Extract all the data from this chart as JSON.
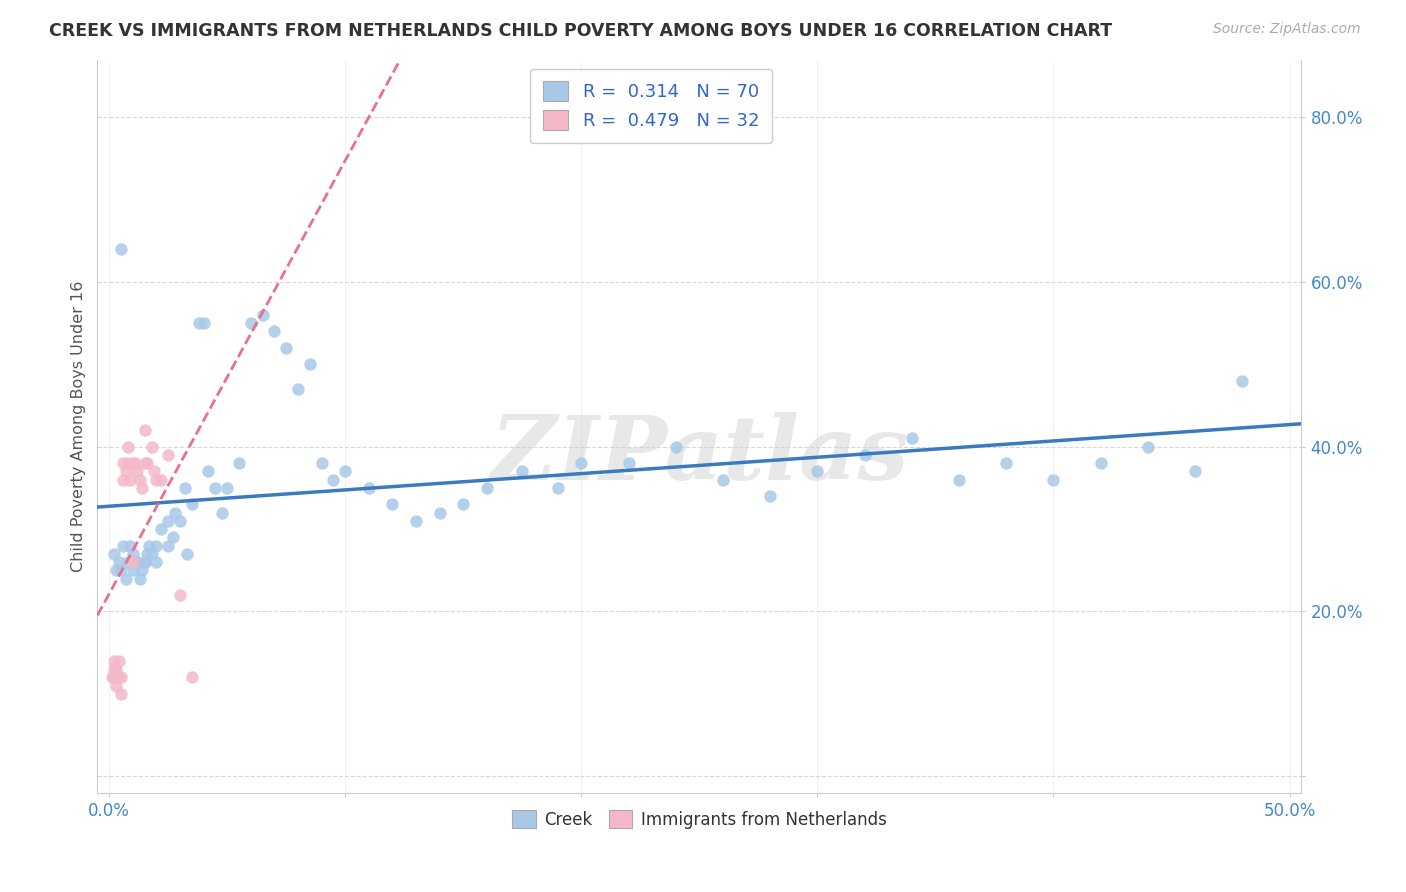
{
  "title": "CREEK VS IMMIGRANTS FROM NETHERLANDS CHILD POVERTY AMONG BOYS UNDER 16 CORRELATION CHART",
  "source": "Source: ZipAtlas.com",
  "ylabel": "Child Poverty Among Boys Under 16",
  "xlim": [
    -0.005,
    0.505
  ],
  "ylim": [
    -0.02,
    0.87
  ],
  "xticks": [
    0.0,
    0.1,
    0.2,
    0.3,
    0.4,
    0.5
  ],
  "yticks": [
    0.0,
    0.2,
    0.4,
    0.6,
    0.8
  ],
  "creek_color": "#a8c8e8",
  "netherlands_color": "#f4b8c8",
  "creek_line_color": "#3a7abf",
  "netherlands_line_color": "#e87090",
  "creek_R": 0.314,
  "creek_N": 70,
  "netherlands_R": 0.479,
  "netherlands_N": 32,
  "watermark": "ZIPatlas",
  "background_color": "#ffffff",
  "grid_color": "#d8d8d8",
  "title_color": "#333333",
  "source_color": "#aaaaaa",
  "tick_color": "#4488cc",
  "ylabel_color": "#555555",
  "creek_x": [
    0.002,
    0.003,
    0.004,
    0.005,
    0.006,
    0.007,
    0.008,
    0.009,
    0.01,
    0.011,
    0.012,
    0.013,
    0.014,
    0.015,
    0.016,
    0.017,
    0.018,
    0.02,
    0.022,
    0.025,
    0.027,
    0.028,
    0.03,
    0.032,
    0.033,
    0.035,
    0.038,
    0.04,
    0.042,
    0.045,
    0.048,
    0.05,
    0.055,
    0.06,
    0.065,
    0.07,
    0.075,
    0.08,
    0.085,
    0.09,
    0.095,
    0.1,
    0.11,
    0.12,
    0.13,
    0.14,
    0.15,
    0.16,
    0.175,
    0.19,
    0.2,
    0.22,
    0.24,
    0.26,
    0.28,
    0.3,
    0.32,
    0.34,
    0.36,
    0.38,
    0.4,
    0.42,
    0.44,
    0.46,
    0.48,
    0.005,
    0.01,
    0.015,
    0.02,
    0.025
  ],
  "creek_y": [
    0.27,
    0.25,
    0.26,
    0.25,
    0.28,
    0.24,
    0.26,
    0.28,
    0.27,
    0.26,
    0.26,
    0.24,
    0.25,
    0.26,
    0.27,
    0.28,
    0.27,
    0.28,
    0.3,
    0.31,
    0.29,
    0.32,
    0.31,
    0.35,
    0.27,
    0.33,
    0.55,
    0.55,
    0.37,
    0.35,
    0.32,
    0.35,
    0.38,
    0.55,
    0.56,
    0.54,
    0.52,
    0.47,
    0.5,
    0.38,
    0.36,
    0.37,
    0.35,
    0.33,
    0.31,
    0.32,
    0.33,
    0.35,
    0.37,
    0.35,
    0.38,
    0.38,
    0.4,
    0.36,
    0.34,
    0.37,
    0.39,
    0.41,
    0.36,
    0.38,
    0.36,
    0.38,
    0.4,
    0.37,
    0.48,
    0.64,
    0.25,
    0.26,
    0.26,
    0.28
  ],
  "netherlands_x": [
    0.001,
    0.002,
    0.002,
    0.002,
    0.003,
    0.003,
    0.004,
    0.004,
    0.005,
    0.005,
    0.006,
    0.006,
    0.007,
    0.008,
    0.008,
    0.009,
    0.01,
    0.01,
    0.011,
    0.012,
    0.013,
    0.014,
    0.015,
    0.015,
    0.016,
    0.018,
    0.019,
    0.02,
    0.022,
    0.025,
    0.03,
    0.035
  ],
  "netherlands_y": [
    0.12,
    0.13,
    0.14,
    0.12,
    0.11,
    0.13,
    0.12,
    0.14,
    0.1,
    0.12,
    0.36,
    0.38,
    0.37,
    0.38,
    0.4,
    0.36,
    0.38,
    0.26,
    0.38,
    0.37,
    0.36,
    0.35,
    0.38,
    0.42,
    0.38,
    0.4,
    0.37,
    0.36,
    0.36,
    0.39,
    0.22,
    0.12
  ],
  "creek_trendline_x0": 0.0,
  "creek_trendline_y0": 0.27,
  "creek_trendline_x1": 0.5,
  "creek_trendline_y1": 0.48,
  "netherlands_trendline_x0": 0.0,
  "netherlands_trendline_y0": 0.12,
  "netherlands_trendline_x1": 0.045,
  "netherlands_trendline_y1": 0.45
}
